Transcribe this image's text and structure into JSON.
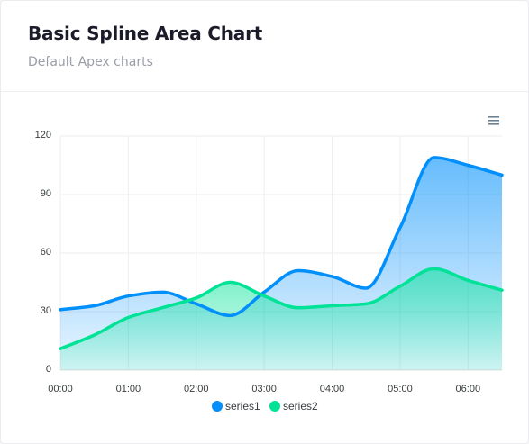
{
  "card": {
    "title": "Basic Spline Area Chart",
    "subtitle": "Default Apex charts"
  },
  "toolbar": {
    "menu_icon": "hamburger-menu-icon"
  },
  "colors": {
    "series1": "#008ffb",
    "series2": "#00e396",
    "grid": "#eeeeee",
    "axis_text": "#373d3f"
  },
  "chart_data": {
    "type": "area",
    "curve": "smooth",
    "x": [
      "00:00",
      "00:30",
      "01:00",
      "01:30",
      "02:00",
      "02:30",
      "03:00",
      "03:30",
      "04:00",
      "04:30",
      "05:00",
      "05:30",
      "06:00",
      "06:30"
    ],
    "x_tick_labels": [
      "00:00",
      "01:00",
      "02:00",
      "03:00",
      "04:00",
      "05:00",
      "06:00"
    ],
    "series": [
      {
        "name": "series1",
        "values": [
          31,
          33,
          38,
          40,
          34,
          28,
          40,
          51,
          48,
          42,
          73,
          109,
          105,
          100
        ]
      },
      {
        "name": "series2",
        "values": [
          11,
          18,
          27,
          32,
          37,
          45,
          38,
          32,
          33,
          34,
          43,
          52,
          46,
          41
        ]
      }
    ],
    "ylim": [
      0,
      120
    ],
    "y_tick_labels": [
      "0",
      "30",
      "60",
      "90",
      "120"
    ],
    "grid": true,
    "legend_position": "bottom-center"
  }
}
